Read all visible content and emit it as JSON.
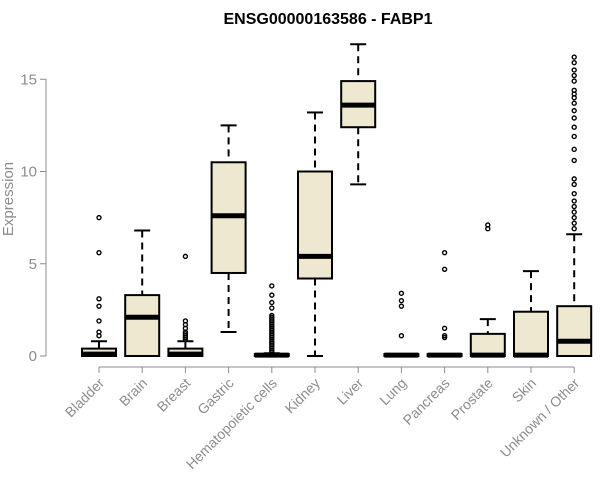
{
  "chart_data": {
    "type": "boxplot",
    "title": "ENSG00000163586 - FABP1",
    "xlabel": "",
    "ylabel": "Expression",
    "ylim": [
      0,
      17
    ],
    "yticks": [
      0,
      5,
      10,
      15
    ],
    "grid": false,
    "legend": null,
    "colors": {
      "box_fill": "#EEE8D0",
      "box_stroke": "#000000",
      "axis_label": "#8C8C8C",
      "title": "#000000"
    },
    "categories": [
      "Bladder",
      "Brain",
      "Breast",
      "Gastric",
      "Hematopoietic cells",
      "Kidney",
      "Liver",
      "Lung",
      "Pancreas",
      "Prostate",
      "Skin",
      "Unknown / Other"
    ],
    "boxes": [
      {
        "category": "Bladder",
        "whisker_low": 0,
        "q1": 0,
        "median": 0.1,
        "q3": 0.4,
        "whisker_high": 0.8,
        "outliers": [
          1.1,
          1.3,
          1.9,
          2.7,
          3.1,
          5.6,
          7.5
        ]
      },
      {
        "category": "Brain",
        "whisker_low": 0,
        "q1": 0,
        "median": 2.1,
        "q3": 3.3,
        "whisker_high": 6.8,
        "outliers": []
      },
      {
        "category": "Breast",
        "whisker_low": 0,
        "q1": 0,
        "median": 0.1,
        "q3": 0.4,
        "whisker_high": 0.8,
        "outliers": [
          0.9,
          1.0,
          1.1,
          1.2,
          1.3,
          1.5,
          1.7,
          1.9,
          5.4
        ]
      },
      {
        "category": "Gastric",
        "whisker_low": 1.3,
        "q1": 4.5,
        "median": 7.6,
        "q3": 10.5,
        "whisker_high": 12.5,
        "outliers": []
      },
      {
        "category": "Hematopoietic cells",
        "whisker_low": 0,
        "q1": 0,
        "median": 0.05,
        "q3": 0.1,
        "whisker_high": 0.15,
        "outliers": [
          0.2,
          0.3,
          0.4,
          0.5,
          0.6,
          0.7,
          0.8,
          0.9,
          1.0,
          1.1,
          1.2,
          1.3,
          1.4,
          1.5,
          1.6,
          1.7,
          1.8,
          1.9,
          2.0,
          2.1,
          2.2,
          2.6,
          2.9,
          3.3,
          3.8
        ]
      },
      {
        "category": "Kidney",
        "whisker_low": 0,
        "q1": 4.2,
        "median": 5.4,
        "q3": 10.0,
        "whisker_high": 13.2,
        "outliers": []
      },
      {
        "category": "Liver",
        "whisker_low": 9.3,
        "q1": 12.4,
        "median": 13.6,
        "q3": 14.9,
        "whisker_high": 16.9,
        "outliers": []
      },
      {
        "category": "Lung",
        "whisker_low": 0,
        "q1": 0,
        "median": 0.05,
        "q3": 0.1,
        "whisker_high": 0.1,
        "outliers": [
          1.1,
          2.7,
          3.0,
          3.4
        ]
      },
      {
        "category": "Pancreas",
        "whisker_low": 0,
        "q1": 0,
        "median": 0.05,
        "q3": 0.1,
        "whisker_high": 0.1,
        "outliers": [
          1.0,
          1.1,
          1.5,
          4.7,
          5.6
        ]
      },
      {
        "category": "Prostate",
        "whisker_low": 0,
        "q1": 0,
        "median": 0.05,
        "q3": 1.2,
        "whisker_high": 2.0,
        "outliers": [
          6.9,
          7.1
        ]
      },
      {
        "category": "Skin",
        "whisker_low": 0,
        "q1": 0,
        "median": 0.05,
        "q3": 2.4,
        "whisker_high": 4.6,
        "outliers": []
      },
      {
        "category": "Unknown / Other",
        "whisker_low": 0,
        "q1": 0,
        "median": 0.8,
        "q3": 2.7,
        "whisker_high": 6.6,
        "outliers": [
          6.9,
          7.2,
          7.5,
          7.8,
          8.1,
          8.4,
          8.8,
          9.3,
          9.6,
          10.6,
          11.2,
          11.9,
          12.4,
          12.9,
          13.3,
          13.7,
          14.0,
          14.2,
          14.4,
          14.9,
          15.2,
          15.5,
          15.9,
          16.2
        ]
      }
    ]
  }
}
